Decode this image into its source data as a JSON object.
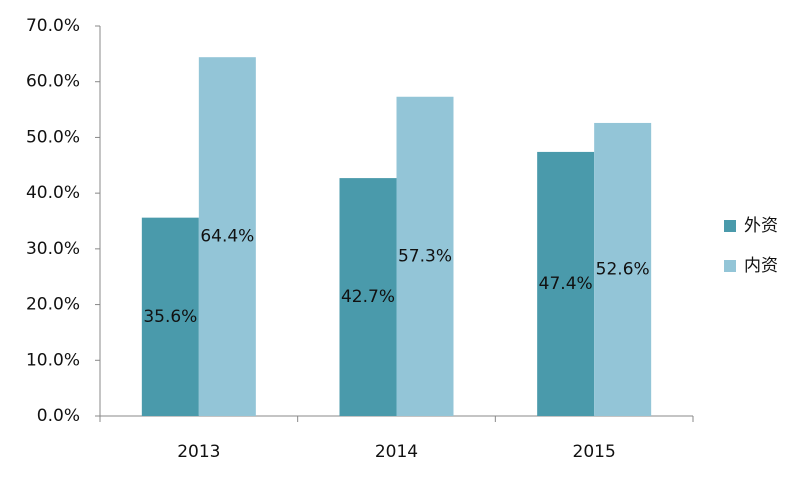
{
  "chart_data": {
    "type": "bar",
    "categories": [
      "2013",
      "2014",
      "2015"
    ],
    "series": [
      {
        "name": "外资",
        "color": "#4a9aab",
        "values": [
          35.6,
          42.7,
          47.4
        ],
        "value_labels": [
          "35.6%",
          "42.7%",
          "47.4%"
        ]
      },
      {
        "name": "内资",
        "color": "#93c5d7",
        "values": [
          64.4,
          57.3,
          52.6
        ],
        "value_labels": [
          "64.4%",
          "57.3%",
          "52.6%"
        ]
      }
    ],
    "ylim": [
      0,
      70
    ],
    "yticks": [
      {
        "value": 0,
        "label": "0.0%"
      },
      {
        "value": 10,
        "label": "10.0%"
      },
      {
        "value": 20,
        "label": "20.0%"
      },
      {
        "value": 30,
        "label": "30.0%"
      },
      {
        "value": 40,
        "label": "40.0%"
      },
      {
        "value": 50,
        "label": "50.0%"
      },
      {
        "value": 60,
        "label": "60.0%"
      },
      {
        "value": 70,
        "label": "70.0%"
      }
    ],
    "legend": "right"
  }
}
